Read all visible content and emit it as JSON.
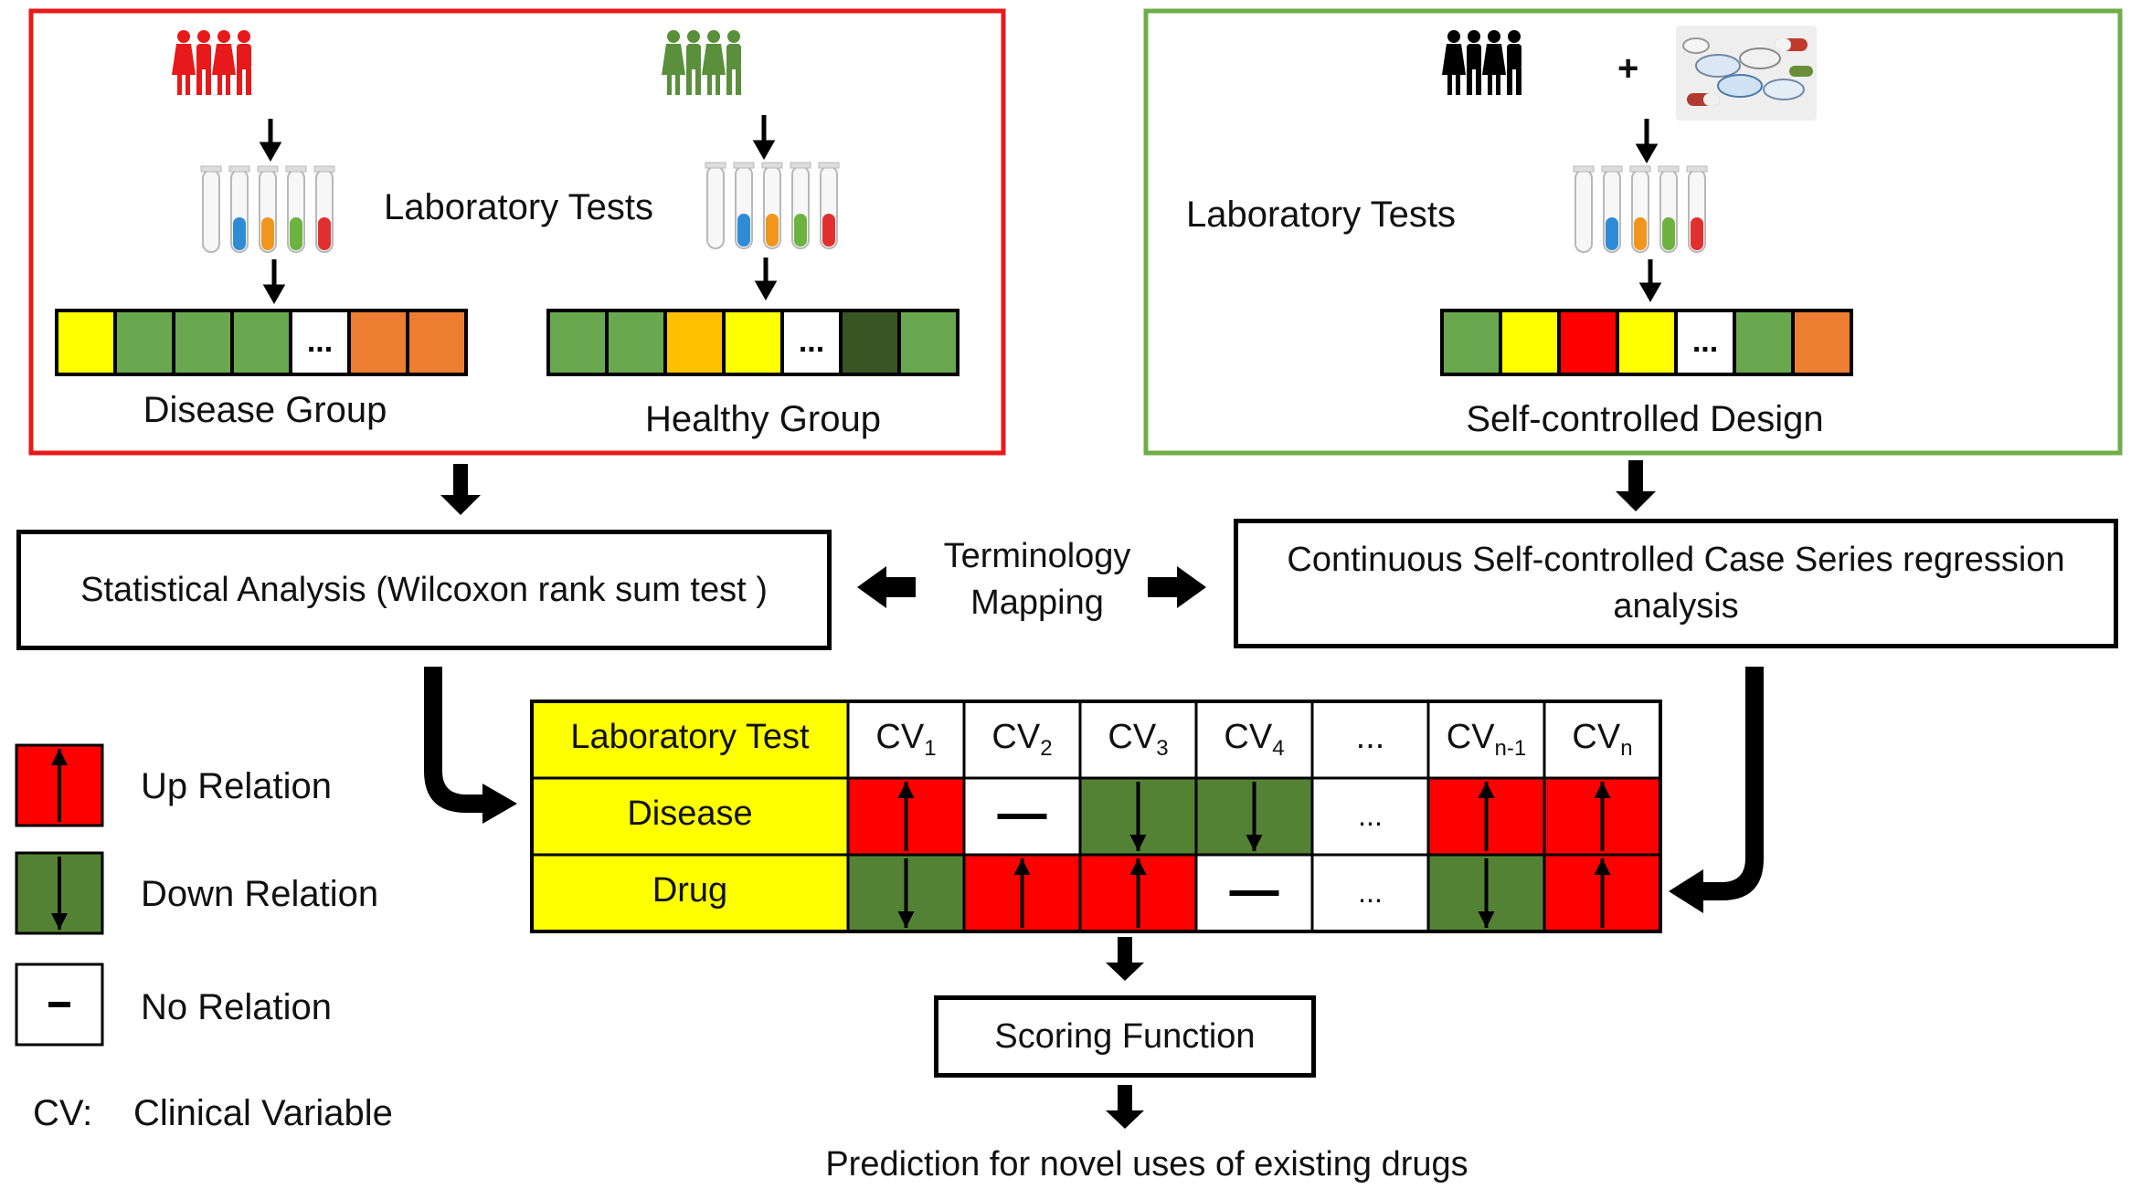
{
  "panels": {
    "disease": {
      "border_color": "#e8191a",
      "label_lab_tests": "Laboratory Tests",
      "disease_group_label": "Disease Group",
      "healthy_group_label": "Healthy Group",
      "disease_bar": [
        "#ffff00",
        "#6aa84f",
        "#6aa84f",
        "#6aa84f",
        "...",
        "#ed7d31",
        "#ed7d31"
      ],
      "healthy_bar": [
        "#6aa84f",
        "#6aa84f",
        "#ffc000",
        "#ffff00",
        "...",
        "#375623",
        "#6aa84f"
      ],
      "disease_people_color": "#e8191a",
      "healthy_people_color": "#5a8f3c"
    },
    "self_controlled": {
      "border_color": "#70ad47",
      "label_lab_tests": "Laboratory Tests",
      "plus": "+",
      "design_label": "Self-controlled Design",
      "bar": [
        "#6aa84f",
        "#ffff00",
        "#ff0000",
        "#ffff00",
        "...",
        "#6aa84f",
        "#ed7d31"
      ],
      "people_color": "#000000"
    }
  },
  "analysis": {
    "statistical": "Statistical Analysis (Wilcoxon rank sum test )",
    "terminology_line1": "Terminology",
    "terminology_line2": "Mapping",
    "cscs_line1": "Continuous Self-controlled Case Series regression",
    "cscs_line2": "analysis"
  },
  "matrix": {
    "header": "Laboratory Test",
    "row_labels": [
      "Disease",
      "Drug"
    ],
    "columns": [
      {
        "base": "CV",
        "sub": "1"
      },
      {
        "base": "CV",
        "sub": "2"
      },
      {
        "base": "CV",
        "sub": "3"
      },
      {
        "base": "CV",
        "sub": "4"
      },
      {
        "base": "...",
        "sub": ""
      },
      {
        "base": "CV",
        "sub": "n-1"
      },
      {
        "base": "CV",
        "sub": "n"
      }
    ],
    "disease": [
      "up",
      "none",
      "down",
      "down",
      "...",
      "up",
      "up"
    ],
    "drug": [
      "down",
      "up",
      "up",
      "none",
      "...",
      "down",
      "up"
    ]
  },
  "legend": {
    "up": "Up Relation",
    "down": "Down Relation",
    "none": "No Relation",
    "cv_key": "CV:",
    "cv_value": "Clinical Variable"
  },
  "scoring": "Scoring Function",
  "prediction": "Prediction for novel uses of existing drugs",
  "colors": {
    "up": "#ff0000",
    "down": "#548235",
    "header_yellow": "#ffff00",
    "tube_colors": [
      "#ffffff",
      "#2e8bd6",
      "#f0961e",
      "#6cb33f",
      "#e03030"
    ]
  }
}
